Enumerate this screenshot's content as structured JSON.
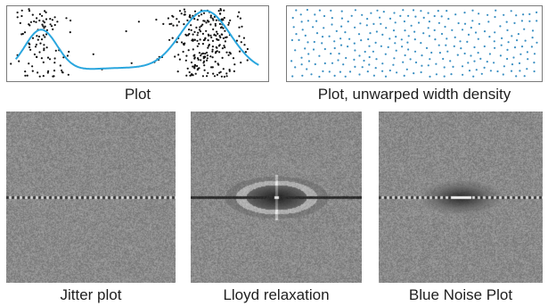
{
  "top_row": {
    "left_panel": {
      "caption": "Plot",
      "curve_color": "#2aa6de",
      "point_color": "#111111",
      "description": "black sample points distributed with density following a wavy blue curve"
    },
    "right_panel": {
      "caption": "Plot, unwarped width density",
      "point_color": "#3a8fc2"
    },
    "border_color": "#7a7a7a"
  },
  "bottom_row": [
    {
      "id": "jitter",
      "caption": "Jitter plot",
      "center_blob": "none",
      "horizontal_line": "dashed-bright"
    },
    {
      "id": "lloyd",
      "caption": "Lloyd relaxation",
      "center_blob": "strong-dark-ellipse-with-rings",
      "horizontal_line": "solid-dark"
    },
    {
      "id": "bluenoise",
      "caption": "Blue Noise Plot",
      "center_blob": "dark-ellipse",
      "horizontal_line": "dashed-bright"
    }
  ],
  "spectrum_base_gray": "#8a8a8a"
}
